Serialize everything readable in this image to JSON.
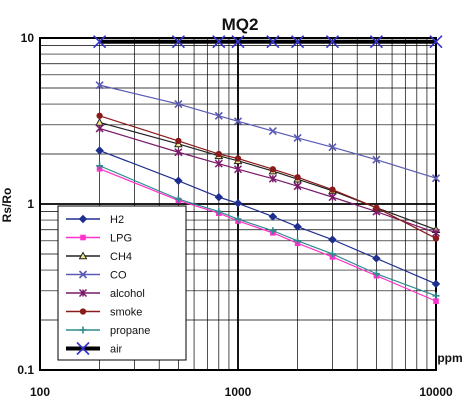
{
  "chart_data": {
    "type": "line",
    "title": "MQ2",
    "xlabel": "ppm",
    "ylabel": "Rs/Ro",
    "x_scale": "log",
    "y_scale": "log",
    "xlim": [
      100,
      10000
    ],
    "ylim": [
      0.1,
      10
    ],
    "x_tick_labels": [
      "100",
      "1000",
      "10000"
    ],
    "y_tick_labels": [
      "0.1",
      "1",
      "10"
    ],
    "grid": true,
    "legend_position": "lower-left",
    "x": [
      200,
      500,
      800,
      1000,
      1500,
      2000,
      3000,
      5000,
      10000
    ],
    "series": [
      {
        "name": "H2",
        "color": "#1f2f8f",
        "marker": "diamond",
        "values": [
          2.1,
          1.38,
          1.1,
          1.01,
          0.84,
          0.73,
          0.61,
          0.47,
          0.33
        ]
      },
      {
        "name": "LPG",
        "color": "#ff33cc",
        "marker": "square",
        "values": [
          1.63,
          1.05,
          0.88,
          0.79,
          0.67,
          0.58,
          0.48,
          0.37,
          0.26
        ]
      },
      {
        "name": "CH4",
        "color": "#222222",
        "marker": "triangle",
        "values": [
          3.1,
          2.3,
          1.95,
          1.82,
          1.58,
          1.41,
          1.2,
          0.95,
          0.7
        ]
      },
      {
        "name": "CO",
        "color": "#5a5ab4",
        "marker": "x",
        "values": [
          5.2,
          4.0,
          3.4,
          3.15,
          2.75,
          2.5,
          2.2,
          1.85,
          1.43
        ]
      },
      {
        "name": "alcohol",
        "color": "#7a1a6a",
        "marker": "star",
        "values": [
          2.85,
          2.05,
          1.75,
          1.62,
          1.42,
          1.28,
          1.1,
          0.9,
          0.67
        ]
      },
      {
        "name": "smoke",
        "color": "#8b1a1a",
        "marker": "circle",
        "values": [
          3.4,
          2.4,
          2.0,
          1.88,
          1.62,
          1.45,
          1.22,
          0.95,
          0.62
        ]
      },
      {
        "name": "propane",
        "color": "#2e8b8b",
        "marker": "plus",
        "values": [
          1.7,
          1.07,
          0.9,
          0.81,
          0.69,
          0.6,
          0.5,
          0.38,
          0.28
        ]
      },
      {
        "name": "air",
        "color": "#3333cc",
        "marker": "x",
        "values": [
          9.5,
          9.5,
          9.5,
          9.5,
          9.5,
          9.5,
          9.5,
          9.5,
          9.5
        ]
      }
    ]
  }
}
